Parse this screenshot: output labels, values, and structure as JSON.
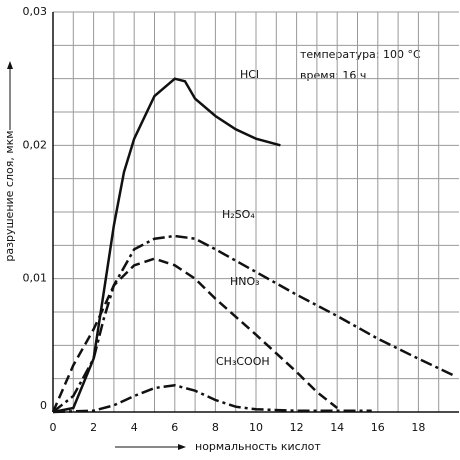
{
  "chart_data": {
    "type": "line",
    "xlabel": "нормальность кислот",
    "ylabel": "разрушение слоя, мкм",
    "annotations": [
      "температура: 100 °C",
      "время: 16 ч"
    ],
    "xlim": [
      0,
      20
    ],
    "ylim": [
      0,
      0.03
    ],
    "xticks": [
      0,
      2,
      4,
      6,
      8,
      10,
      12,
      14,
      16,
      18
    ],
    "xgrid": [
      1,
      3,
      5,
      7,
      9,
      11,
      13,
      15,
      17,
      19
    ],
    "yticks": [
      {
        "value": 0,
        "label": "0"
      },
      {
        "value": 0.01,
        "label": "0,01"
      },
      {
        "value": 0.02,
        "label": "0,02"
      },
      {
        "value": 0.03,
        "label": "0,03"
      }
    ],
    "ygrid": [
      0.0025,
      0.005,
      0.0075,
      0.0125,
      0.015,
      0.0175,
      0.0225,
      0.025,
      0.0275
    ],
    "grid": true,
    "series": [
      {
        "name": "HCl",
        "color": "#111111",
        "dash": "none",
        "x": [
          0,
          1,
          2,
          2.5,
          3,
          3.5,
          4,
          5,
          6,
          6.5,
          7,
          8,
          9,
          10,
          11.2
        ],
        "values": [
          0,
          0.0003,
          0.004,
          0.009,
          0.014,
          0.018,
          0.0205,
          0.0237,
          0.025,
          0.0248,
          0.0235,
          0.0222,
          0.0212,
          0.0205,
          0.02
        ]
      },
      {
        "name": "H₂SO₄",
        "color": "#111111",
        "dash": "12 4 3 4",
        "x": [
          0,
          1,
          2,
          2.5,
          3,
          4,
          5,
          6,
          7,
          8,
          10,
          12,
          14,
          16,
          18,
          19.8
        ],
        "values": [
          0,
          0.0012,
          0.004,
          0.007,
          0.0095,
          0.0122,
          0.013,
          0.0132,
          0.013,
          0.0122,
          0.0105,
          0.0088,
          0.0072,
          0.0055,
          0.004,
          0.0027
        ]
      },
      {
        "name": "HNO₃",
        "color": "#111111",
        "dash": "10 5",
        "x": [
          0,
          1,
          2,
          3,
          4,
          5,
          6,
          7,
          8,
          10,
          12,
          13,
          14
        ],
        "values": [
          0,
          0.0035,
          0.0062,
          0.0095,
          0.011,
          0.0115,
          0.011,
          0.01,
          0.0085,
          0.0058,
          0.003,
          0.0015,
          0.0003
        ]
      },
      {
        "name": "CH₃COOH",
        "color": "#111111",
        "dash": "12 4 3 4",
        "x": [
          0,
          2,
          3,
          4,
          5,
          6,
          7,
          8,
          9,
          10,
          12,
          15.7
        ],
        "values": [
          0,
          0.0001,
          0.0005,
          0.0012,
          0.0018,
          0.002,
          0.0016,
          0.0009,
          0.0004,
          0.0002,
          0.0001,
          0.0001
        ]
      }
    ]
  }
}
